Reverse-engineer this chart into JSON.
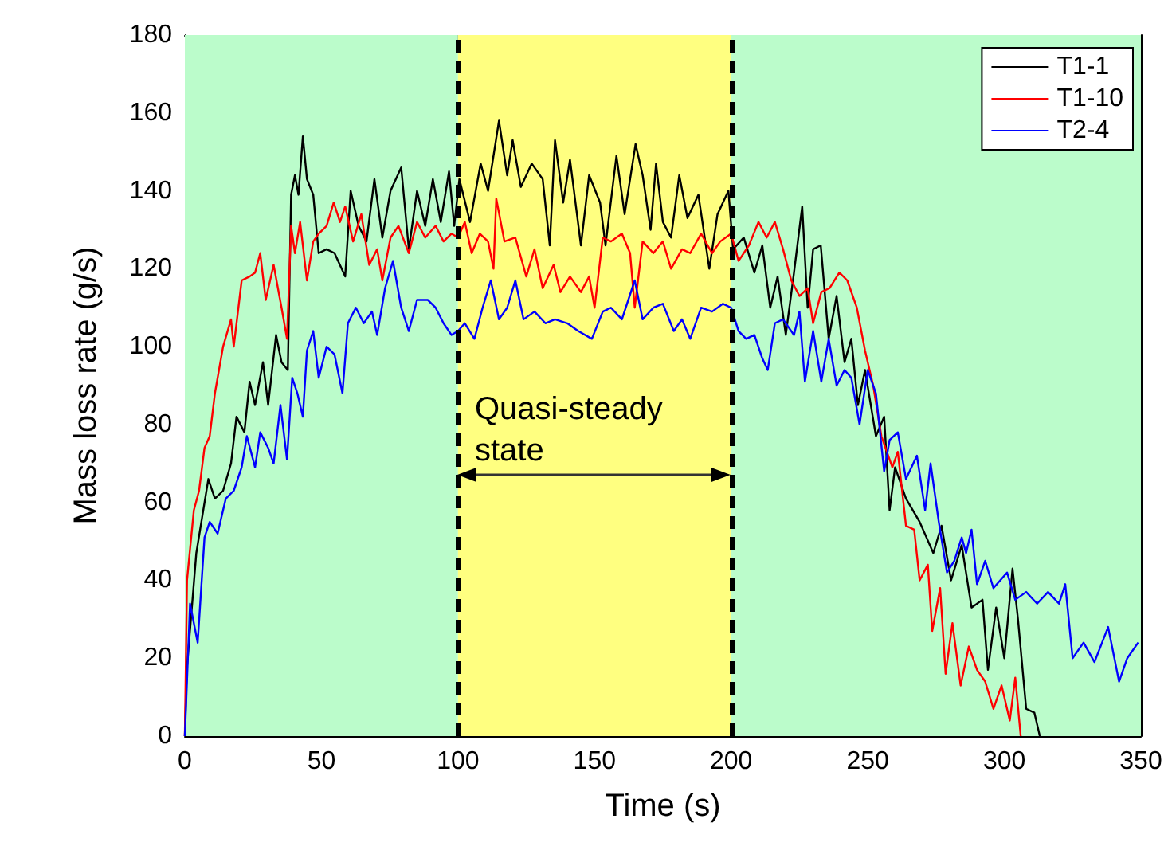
{
  "chart_data": {
    "type": "line",
    "xlabel": "Time (s)",
    "ylabel": "Mass loss rate (g/s)",
    "xlim": [
      0,
      350
    ],
    "xticks": [
      0,
      50,
      100,
      150,
      200,
      250,
      300,
      350
    ],
    "ylim": [
      0,
      180
    ],
    "yticks": [
      0,
      20,
      40,
      60,
      80,
      100,
      120,
      140,
      160,
      180
    ],
    "grid": false,
    "legend": "top right",
    "marker": "none",
    "annotations": [
      "Quasi-steady state"
    ],
    "bands": [
      {
        "axis": "x",
        "from": 0,
        "to": 100,
        "color": "#bbfccb"
      },
      {
        "axis": "x",
        "from": 100,
        "to": 200,
        "color": "#ffff80"
      },
      {
        "axis": "x",
        "from": 200,
        "to": 350,
        "color": "#bbfccb"
      }
    ],
    "ref_lines": [
      {
        "axis": "x",
        "value": 100,
        "color": "#000000",
        "line_style": "dashed"
      },
      {
        "axis": "x",
        "value": 200,
        "color": "#000000",
        "line_style": "dashed"
      }
    ],
    "series": [
      {
        "name": "T1-1",
        "color": "#000000",
        "x": [
          0,
          0.7,
          4.2,
          8.6,
          11,
          14,
          16.9,
          18.9,
          21.8,
          23.7,
          25.7,
          28.6,
          30.5,
          33.4,
          35.4,
          37.7,
          38.9,
          40.3,
          41.6,
          43.2,
          44.7,
          47,
          49,
          51.9,
          54.8,
          58.7,
          60.7,
          63.6,
          66.5,
          69.4,
          72.3,
          75.3,
          79.2,
          82,
          85,
          88,
          90.8,
          93.7,
          96.7,
          98.6,
          100.5,
          104.4,
          108.3,
          111,
          115,
          118,
          120,
          123,
          127,
          131,
          133.6,
          135.5,
          138.5,
          141,
          145,
          148,
          152,
          154,
          158,
          161,
          165,
          167.6,
          170.5,
          172.5,
          175,
          178,
          181,
          184,
          188,
          192,
          195,
          199,
          200.7,
          204.6,
          208.5,
          211.4,
          214.3,
          217,
          220,
          223,
          226,
          228,
          230,
          232.8,
          235.7,
          238.6,
          241.5,
          244,
          246.4,
          249,
          253,
          256,
          258,
          260,
          264,
          269,
          274,
          277,
          280.5,
          284.4,
          288,
          292,
          294,
          297,
          300,
          303,
          305,
          308,
          311,
          313
        ],
        "values": [
          0,
          17,
          47,
          66,
          61,
          63,
          70,
          82,
          78,
          91,
          85,
          96,
          85,
          103,
          96,
          94,
          139,
          144,
          139,
          154,
          143,
          139,
          124,
          125,
          124,
          118,
          140,
          131,
          127,
          143,
          128,
          140,
          146,
          125,
          140,
          131,
          143,
          132,
          145,
          131,
          143,
          132,
          147,
          140,
          158,
          144,
          153,
          141,
          147,
          143,
          126,
          153,
          137,
          148,
          126,
          144,
          137,
          126,
          149,
          134,
          152,
          144,
          130,
          147,
          132,
          128,
          144,
          133,
          139,
          120,
          134,
          140,
          125,
          128,
          119,
          126,
          110,
          118,
          103,
          119,
          136,
          110,
          125,
          126,
          102,
          113,
          96,
          102,
          85,
          94,
          77,
          82,
          58,
          69,
          61,
          55,
          47,
          54,
          40,
          49,
          33,
          35,
          17,
          33,
          20,
          43,
          30,
          7,
          6,
          0
        ]
      },
      {
        "name": "T1-10",
        "color": "#ff0000",
        "x": [
          0,
          0.8,
          3.3,
          5.2,
          7.2,
          9.1,
          11,
          14,
          16.9,
          17.9,
          20.8,
          23.7,
          25.7,
          27.6,
          29.6,
          32.5,
          35.4,
          37.4,
          38.9,
          40.3,
          42.2,
          44.7,
          47,
          49,
          51.9,
          54.5,
          56.8,
          58.7,
          61.6,
          64.6,
          67.5,
          70.4,
          72.3,
          75.3,
          78.2,
          82,
          85,
          88,
          91.8,
          94.7,
          97.6,
          100,
          102.5,
          105,
          108,
          111,
          113,
          114,
          117,
          121,
          125,
          128,
          131,
          135,
          137.5,
          141,
          145,
          148,
          150,
          153,
          156,
          160,
          163,
          164.7,
          167.6,
          171.5,
          175,
          178,
          182,
          185,
          189,
          193,
          196,
          200,
          202.7,
          206.5,
          210,
          213,
          216,
          219,
          222,
          225,
          228,
          230,
          233,
          236,
          239.6,
          242.5,
          246,
          249,
          252,
          255,
          259,
          261,
          264,
          267,
          269,
          272,
          273.6,
          276.5,
          278.5,
          281,
          284,
          287,
          290,
          293,
          296,
          299,
          302,
          304,
          306
        ],
        "values": [
          0,
          40,
          58,
          63,
          74,
          77,
          88,
          100,
          107,
          100,
          117,
          118,
          119,
          124,
          112,
          121,
          110,
          102,
          131,
          124,
          132,
          117,
          127,
          129,
          131,
          137,
          132,
          136,
          127,
          134,
          121,
          125,
          117,
          128,
          131,
          124,
          132,
          128,
          131,
          127,
          129,
          128,
          132,
          124,
          129,
          127,
          120,
          138,
          127,
          128,
          118,
          125,
          115,
          121,
          114,
          118,
          114,
          118,
          110,
          128,
          127,
          129,
          124,
          110,
          127,
          124,
          127,
          120,
          125,
          124,
          129,
          124,
          127,
          129,
          122,
          126,
          132,
          128,
          132,
          125,
          117,
          113,
          115,
          106,
          114,
          115,
          119,
          117,
          110,
          99,
          90,
          77,
          69,
          73,
          54,
          53,
          40,
          44,
          27,
          38,
          16,
          29,
          13,
          23,
          17,
          14,
          7,
          13,
          4,
          15,
          0
        ]
      },
      {
        "name": "T2-4",
        "color": "#0000ff",
        "x": [
          0,
          1.9,
          4.7,
          7.2,
          9.1,
          12,
          15,
          17.9,
          20.8,
          22.7,
          25.7,
          27.6,
          30.5,
          32.5,
          35,
          37.4,
          39.3,
          41.2,
          43.2,
          44.7,
          47,
          49,
          51.9,
          54.8,
          57.7,
          59.7,
          62.6,
          65.5,
          68.5,
          70.4,
          73.3,
          76.2,
          79.2,
          82,
          85,
          88.9,
          91.8,
          94.7,
          97.6,
          100,
          102.5,
          106,
          109,
          112,
          115,
          118,
          121,
          124,
          128,
          132,
          135.5,
          140,
          144,
          149,
          153,
          156,
          160,
          164.7,
          167.6,
          171.5,
          175,
          179,
          182,
          185,
          189,
          193,
          197,
          200,
          202.7,
          205.5,
          208.5,
          211.4,
          213.4,
          216,
          219,
          223,
          225,
          227,
          230,
          233,
          235.7,
          238.6,
          241.5,
          244,
          247,
          250,
          253,
          256,
          258,
          261,
          264,
          268,
          271,
          273,
          276,
          279,
          281.7,
          284.4,
          286,
          288,
          290,
          293,
          296,
          301,
          304,
          308,
          312,
          316,
          320,
          322.3,
          325,
          329,
          333,
          338,
          342,
          345,
          349
        ],
        "values": [
          0,
          34,
          24,
          51,
          55,
          52,
          61,
          63,
          69,
          77,
          69,
          78,
          74,
          70,
          85,
          71,
          92,
          88,
          82,
          99,
          104,
          92,
          100,
          98,
          88,
          106,
          110,
          106,
          109,
          103,
          115,
          122,
          110,
          104,
          112,
          112,
          110,
          106,
          103,
          104,
          106,
          102,
          110,
          117,
          107,
          110,
          117,
          107,
          109,
          106,
          107,
          106,
          104,
          102,
          109,
          110,
          107,
          117,
          107,
          110,
          111,
          104,
          107,
          102,
          110,
          109,
          111,
          110,
          104,
          102,
          103,
          97,
          94,
          106,
          107,
          103,
          109,
          91,
          104,
          91,
          102,
          90,
          94,
          92,
          80,
          94,
          88,
          68,
          76,
          78,
          66,
          72,
          58,
          70,
          55,
          42,
          45,
          51,
          47,
          53,
          39,
          45,
          38,
          42,
          35,
          37,
          34,
          37,
          34,
          39,
          20,
          24,
          19,
          28,
          14,
          20,
          24
        ]
      }
    ]
  }
}
